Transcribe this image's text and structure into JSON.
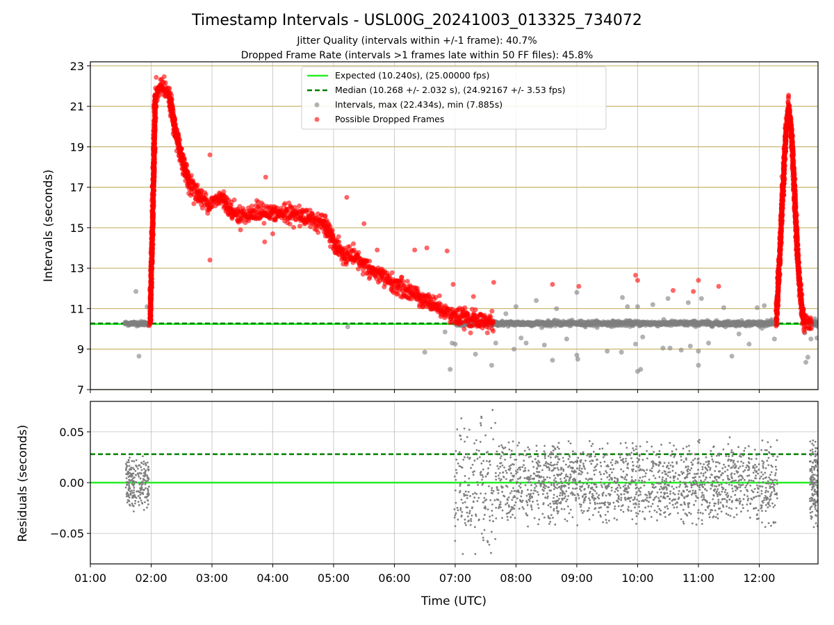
{
  "figure": {
    "title": "Timestamp Intervals - USL00G_20241003_013325_734072",
    "subtitle_1": "Jitter Quality (intervals within +/-1 frame): 40.7%",
    "subtitle_2": "Dropped Frame Rate (intervals >1 frames late within 50 FF files): 45.8%"
  },
  "chart_data": [
    {
      "type": "scatter",
      "panel": "top",
      "title": "",
      "xlabel": "",
      "ylabel": "Intervals (seconds)",
      "xlim": [
        "01:00",
        "12:58"
      ],
      "ylim": [
        7,
        23.2
      ],
      "x_ticks": [
        "01:00",
        "02:00",
        "03:00",
        "04:00",
        "05:00",
        "06:00",
        "07:00",
        "08:00",
        "09:00",
        "10:00",
        "11:00",
        "12:00"
      ],
      "y_ticks": [
        7,
        9,
        11,
        13,
        15,
        17,
        19,
        21,
        23
      ],
      "grid": true,
      "legend_position": "top-center",
      "reference_lines": [
        {
          "name": "Expected (10.240s), (25.00000 fps)",
          "y": 10.24,
          "color": "#22ee22",
          "style": "solid"
        },
        {
          "name": "Median (10.268 +/- 2.032 s), (24.92167 +/- 3.53 fps)",
          "y": 10.268,
          "color": "#007f00",
          "style": "dashed"
        }
      ],
      "series": [
        {
          "name": "Intervals, max (22.434s), min (7.885s)",
          "color": "#7f7f7f",
          "segments": [
            {
              "x_start": "01:34",
              "x_end": "01:58",
              "center": 10.27,
              "spread": 0.05
            },
            {
              "x_start": "07:00",
              "x_end": "12:18",
              "center": 10.27,
              "spread": 0.06
            },
            {
              "x_start": "12:50",
              "x_end": "12:58",
              "center": 10.27,
              "spread": 0.06
            }
          ],
          "outliers": [
            {
              "x": "01:45",
              "y": 11.85
            },
            {
              "x": "01:48",
              "y": 8.65
            },
            {
              "x": "01:56",
              "y": 11.1
            },
            {
              "x": "05:14",
              "y": 10.1
            },
            {
              "x": "06:30",
              "y": 8.85
            },
            {
              "x": "06:50",
              "y": 9.85
            },
            {
              "x": "06:55",
              "y": 8.0
            },
            {
              "x": "06:57",
              "y": 9.3
            },
            {
              "x": "07:00",
              "y": 9.25
            },
            {
              "x": "07:20",
              "y": 8.75
            },
            {
              "x": "07:36",
              "y": 8.2
            },
            {
              "x": "07:40",
              "y": 9.3
            },
            {
              "x": "07:50",
              "y": 10.75
            },
            {
              "x": "07:58",
              "y": 9.0
            },
            {
              "x": "08:00",
              "y": 11.1
            },
            {
              "x": "08:05",
              "y": 9.55
            },
            {
              "x": "08:10",
              "y": 9.3
            },
            {
              "x": "08:20",
              "y": 11.4
            },
            {
              "x": "08:28",
              "y": 9.2
            },
            {
              "x": "08:36",
              "y": 8.45
            },
            {
              "x": "08:40",
              "y": 11.0
            },
            {
              "x": "08:50",
              "y": 9.5
            },
            {
              "x": "09:00",
              "y": 11.8
            },
            {
              "x": "09:00",
              "y": 8.7
            },
            {
              "x": "09:01",
              "y": 8.5
            },
            {
              "x": "09:30",
              "y": 8.9
            },
            {
              "x": "09:44",
              "y": 8.85
            },
            {
              "x": "09:45",
              "y": 11.55
            },
            {
              "x": "09:50",
              "y": 11.1
            },
            {
              "x": "09:58",
              "y": 9.25
            },
            {
              "x": "10:00",
              "y": 11.1
            },
            {
              "x": "10:00",
              "y": 7.9
            },
            {
              "x": "10:03",
              "y": 8.0
            },
            {
              "x": "10:05",
              "y": 9.6
            },
            {
              "x": "10:15",
              "y": 11.2
            },
            {
              "x": "10:25",
              "y": 9.05
            },
            {
              "x": "10:30",
              "y": 11.5
            },
            {
              "x": "10:32",
              "y": 9.05
            },
            {
              "x": "10:43",
              "y": 8.95
            },
            {
              "x": "10:50",
              "y": 11.3
            },
            {
              "x": "10:52",
              "y": 9.15
            },
            {
              "x": "11:00",
              "y": 8.9
            },
            {
              "x": "11:00",
              "y": 8.2
            },
            {
              "x": "11:03",
              "y": 11.5
            },
            {
              "x": "11:10",
              "y": 9.3
            },
            {
              "x": "11:25",
              "y": 11.05
            },
            {
              "x": "11:33",
              "y": 8.65
            },
            {
              "x": "11:40",
              "y": 9.75
            },
            {
              "x": "11:50",
              "y": 9.25
            },
            {
              "x": "11:58",
              "y": 11.05
            },
            {
              "x": "12:05",
              "y": 11.15
            },
            {
              "x": "12:15",
              "y": 9.5
            },
            {
              "x": "12:17",
              "y": 11.2
            },
            {
              "x": "12:45",
              "y": 9.8
            },
            {
              "x": "12:46",
              "y": 8.35
            },
            {
              "x": "12:48",
              "y": 8.6
            },
            {
              "x": "12:51",
              "y": 9.5
            },
            {
              "x": "12:55",
              "y": 10.5
            },
            {
              "x": "12:57",
              "y": 9.55
            },
            {
              "x": "12:58",
              "y": 10.1
            }
          ]
        },
        {
          "name": "Possible Dropped Frames",
          "color": "#ff0000",
          "trend_segments": [
            {
              "points": [
                [
                  "01:59",
                  10.3
                ],
                [
                  "02:02",
                  16.5
                ],
                [
                  "02:04",
                  21.5
                ],
                [
                  "02:10",
                  22.0
                ],
                [
                  "02:18",
                  21.5
                ],
                [
                  "02:25",
                  19.5
                ],
                [
                  "02:30",
                  18.4
                ],
                [
                  "02:38",
                  17.2
                ],
                [
                  "02:50",
                  16.4
                ],
                [
                  "03:00",
                  16.2
                ],
                [
                  "03:10",
                  16.5
                ],
                [
                  "03:20",
                  15.8
                ],
                [
                  "03:30",
                  15.6
                ],
                [
                  "03:45",
                  15.75
                ],
                [
                  "04:00",
                  15.7
                ],
                [
                  "04:30",
                  15.6
                ],
                [
                  "04:50",
                  15.2
                ],
                [
                  "05:00",
                  14.3
                ],
                [
                  "05:10",
                  13.6
                ],
                [
                  "05:25",
                  13.4
                ],
                [
                  "05:40",
                  12.8
                ],
                [
                  "06:00",
                  12.2
                ],
                [
                  "06:20",
                  11.7
                ],
                [
                  "06:40",
                  11.2
                ],
                [
                  "07:00",
                  10.6
                ],
                [
                  "07:20",
                  10.4
                ],
                [
                  "07:38",
                  10.3
                ]
              ],
              "spread": 0.4
            },
            {
              "points": [
                [
                  "12:17",
                  10.5
                ],
                [
                  "12:20",
                  13.5
                ],
                [
                  "12:23",
                  16.5
                ],
                [
                  "12:26",
                  19.5
                ],
                [
                  "12:29",
                  21.0
                ],
                [
                  "12:32",
                  19.5
                ],
                [
                  "12:35",
                  16.5
                ],
                [
                  "12:38",
                  13.5
                ],
                [
                  "12:41",
                  11.5
                ],
                [
                  "12:44",
                  10.3
                ],
                [
                  "12:52",
                  10.3
                ]
              ],
              "spread": 0.4
            }
          ],
          "outliers": [
            {
              "x": "02:05",
              "y": 22.43
            },
            {
              "x": "02:58",
              "y": 18.6
            },
            {
              "x": "02:58",
              "y": 13.4
            },
            {
              "x": "03:53",
              "y": 17.5
            },
            {
              "x": "03:52",
              "y": 14.3
            },
            {
              "x": "04:00",
              "y": 14.7
            },
            {
              "x": "04:12",
              "y": 16.2
            },
            {
              "x": "05:13",
              "y": 16.5
            },
            {
              "x": "05:30",
              "y": 15.2
            },
            {
              "x": "05:29",
              "y": 12.7
            },
            {
              "x": "05:43",
              "y": 13.9
            },
            {
              "x": "06:20",
              "y": 13.9
            },
            {
              "x": "06:32",
              "y": 14.0
            },
            {
              "x": "06:52",
              "y": 13.85
            },
            {
              "x": "06:58",
              "y": 12.2
            },
            {
              "x": "07:18",
              "y": 11.6
            },
            {
              "x": "07:38",
              "y": 12.3
            },
            {
              "x": "08:36",
              "y": 12.2
            },
            {
              "x": "09:02",
              "y": 12.1
            },
            {
              "x": "09:58",
              "y": 12.65
            },
            {
              "x": "10:00",
              "y": 12.4
            },
            {
              "x": "10:35",
              "y": 11.9
            },
            {
              "x": "10:55",
              "y": 11.85
            },
            {
              "x": "11:00",
              "y": 12.4
            },
            {
              "x": "11:20",
              "y": 12.1
            }
          ]
        }
      ]
    },
    {
      "type": "scatter",
      "panel": "bottom",
      "title": "",
      "xlabel": "Time (UTC)",
      "ylabel": "Residuals (seconds)",
      "xlim": [
        "01:00",
        "12:58"
      ],
      "ylim": [
        -0.08,
        0.08
      ],
      "x_ticks": [
        "01:00",
        "02:00",
        "03:00",
        "04:00",
        "05:00",
        "06:00",
        "07:00",
        "08:00",
        "09:00",
        "10:00",
        "11:00",
        "12:00"
      ],
      "y_ticks": [
        "0.05",
        "0.00",
        "−0.05"
      ],
      "y_tick_values": [
        0.05,
        0.0,
        -0.05
      ],
      "grid": true,
      "reference_lines": [
        {
          "y": 0.0,
          "color": "#22ee22",
          "style": "solid"
        },
        {
          "y": 0.028,
          "color": "#007f00",
          "style": "dashed"
        }
      ],
      "series": [
        {
          "color": "#7f7f7f",
          "segments": [
            {
              "x_start": "01:35",
              "x_end": "01:58",
              "center": 0.0,
              "spread": 0.03,
              "count": 220
            },
            {
              "x_start": "06:59",
              "x_end": "07:40",
              "center": 0.0,
              "spread": 0.08,
              "count": 180
            },
            {
              "x_start": "07:40",
              "x_end": "12:18",
              "center": 0.0,
              "spread": 0.045,
              "count": 1700
            },
            {
              "x_start": "12:50",
              "x_end": "12:58",
              "center": 0.0,
              "spread": 0.045,
              "count": 140
            }
          ]
        }
      ]
    }
  ],
  "top_labels": {
    "legend_expected": "Expected (10.240s), (25.00000 fps)",
    "legend_median": "Median (10.268 +/- 2.032 s), (24.92167 +/- 3.53 fps)",
    "legend_intervals": "Intervals, max (22.434s), min (7.885s)",
    "legend_dropped": "Possible Dropped Frames"
  }
}
